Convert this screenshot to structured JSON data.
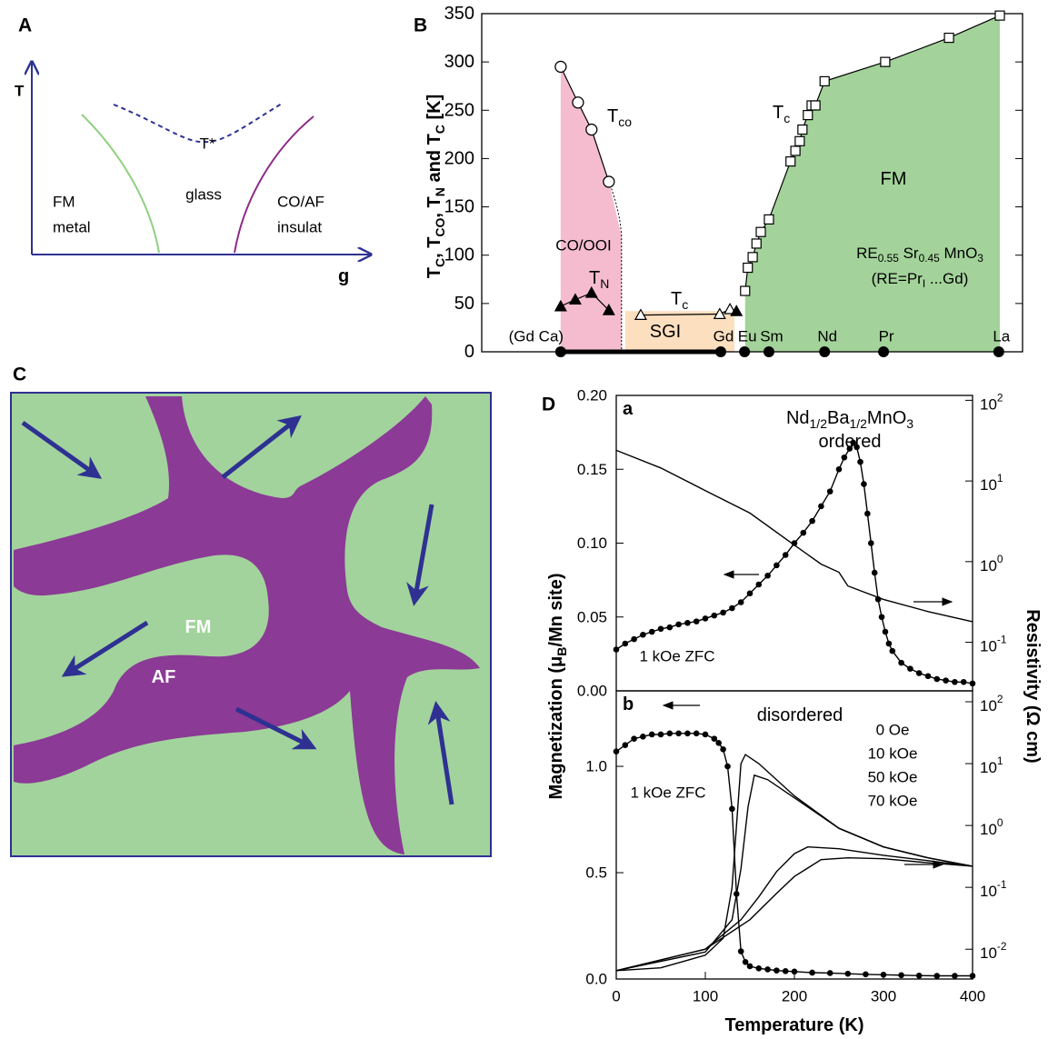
{
  "panel_labels": [
    "A",
    "B",
    "C",
    "D"
  ],
  "diagram_a": {
    "y_axis": "T",
    "x_axis": "g",
    "t_star": "T*",
    "left_phase": [
      "FM",
      "metal"
    ],
    "middle_phase": "glass",
    "right_phase": [
      "CO/AF",
      "insulat"
    ]
  },
  "diagram_c": {
    "fm": "FM",
    "af": "AF"
  },
  "chart_data": [
    {
      "type": "scatter",
      "ylabel": [
        "T",
        "C",
        ", T",
        "CO",
        ", T",
        "N",
        " and T",
        "C",
        " [K]"
      ],
      "xlim": [
        0,
        100
      ],
      "ylim": [
        0,
        350
      ],
      "yticks": [
        0,
        50,
        100,
        150,
        200,
        250,
        300,
        350
      ],
      "series": [
        {
          "label": [
            "T",
            "co"
          ],
          "marker": "circle-open",
          "line": true,
          "fill": "#f5bcd0",
          "x": [
            14.6,
            17.8,
            20.3,
            23.5
          ],
          "values": [
            295,
            258,
            230,
            176
          ]
        },
        {
          "label": [
            "T",
            "N"
          ],
          "marker": "triangle-filled",
          "line": true,
          "x": [
            14.6,
            17.3,
            20.3,
            23.5
          ],
          "values": [
            47,
            54,
            61,
            43
          ]
        },
        {
          "label": [
            "T",
            "c"
          ],
          "marker": "triangle-open",
          "line": true,
          "fill": "#fbdfbf",
          "x": [
            29.4,
            44.0,
            45.9
          ],
          "values": [
            38,
            39,
            44
          ]
        },
        {
          "marker": "triangle-filled",
          "x": [
            47.1
          ],
          "values": [
            42
          ]
        },
        {
          "label": [
            "T",
            "c"
          ],
          "marker": "square-open",
          "line": true,
          "fill": "#a3d39a",
          "x": [
            48.7,
            49.2,
            50.1,
            50.8,
            51.6,
            53.1,
            57.1,
            58.0,
            58.8,
            59.3,
            60.3,
            61.0,
            61.7,
            63.4,
            74.6,
            86.4,
            95.8
          ],
          "values": [
            63,
            87,
            98,
            112,
            124,
            137,
            197,
            208,
            218,
            230,
            245,
            255,
            255,
            280,
            300,
            325,
            348
          ]
        },
        {
          "marker": "dot",
          "x": [
            14.6,
            44.2,
            48.6,
            53.1,
            63.4,
            74.3,
            95.6
          ],
          "values": [
            0,
            0,
            0,
            0,
            0,
            0,
            0
          ],
          "point_labels": [
            "(Gd Ca)",
            "Gd",
            "Eu",
            "Sm",
            "Nd",
            "Pr",
            "La"
          ]
        }
      ],
      "annotations": {
        "fm": "FM",
        "cooi": "CO/OOI",
        "sgi": "SGI",
        "formula": [
          "RE",
          "0.55",
          " Sr",
          "0.45",
          " MnO",
          "3"
        ],
        "re": [
          "(RE=Pr",
          "I",
          " ...Gd)"
        ]
      }
    },
    {
      "type": "line",
      "panel_label": "a",
      "title": [
        "Nd",
        "1/2",
        "Ba",
        "1/2",
        "MnO",
        "3"
      ],
      "subtitle": "ordered",
      "annotation": "1 kOe ZFC",
      "ylabel": [
        "Magnetization (μ",
        "B",
        "/Mn site)"
      ],
      "y2label": "Resistivity (Ω cm)",
      "xlim": [
        0,
        400
      ],
      "ylim": [
        0,
        0.2
      ],
      "yticks": [
        {
          "value": 0,
          "label": "0.00"
        },
        {
          "value": 0.05,
          "label": "0.05"
        },
        {
          "value": 0.1,
          "label": "0.10"
        },
        {
          "value": 0.15,
          "label": "0.15"
        },
        {
          "value": 0.2,
          "label": "0.20"
        }
      ],
      "y2lim": [
        0.025,
        115
      ],
      "y2log": true,
      "y2ticks": [
        {
          "value": 100,
          "label": [
            "10",
            "2"
          ]
        },
        {
          "value": 10,
          "label": [
            "10",
            "1"
          ]
        },
        {
          "value": 1,
          "label": [
            "10",
            "0"
          ]
        },
        {
          "value": 0.1,
          "label": [
            "10",
            "-1"
          ]
        }
      ],
      "series": [
        {
          "marker": "dot",
          "x": [
            0,
            10,
            20,
            30,
            40,
            50,
            60,
            70,
            80,
            90,
            100,
            110,
            120,
            130,
            140,
            150,
            160,
            170,
            180,
            190,
            200,
            210,
            220,
            230,
            240,
            250,
            256,
            262,
            266,
            270,
            274,
            278,
            282,
            286,
            290,
            294,
            298,
            302,
            306,
            310,
            320,
            330,
            340,
            350,
            360,
            370,
            380,
            390,
            400
          ],
          "values": [
            0.028,
            0.032,
            0.035,
            0.038,
            0.04,
            0.042,
            0.043,
            0.045,
            0.046,
            0.047,
            0.049,
            0.051,
            0.053,
            0.056,
            0.06,
            0.066,
            0.072,
            0.078,
            0.085,
            0.092,
            0.1,
            0.107,
            0.115,
            0.125,
            0.135,
            0.15,
            0.158,
            0.164,
            0.168,
            0.165,
            0.155,
            0.14,
            0.12,
            0.1,
            0.08,
            0.062,
            0.05,
            0.04,
            0.032,
            0.027,
            0.019,
            0.015,
            0.012,
            0.01,
            0.008,
            0.007,
            0.006,
            0.006,
            0.005
          ]
        },
        {
          "axis": "y2",
          "x": [
            0,
            50,
            100,
            150,
            200,
            230,
            250,
            260,
            300,
            350,
            400
          ],
          "values": [
            24,
            14.5,
            7.6,
            4,
            1.6,
            0.93,
            0.74,
            0.5,
            0.34,
            0.24,
            0.18
          ]
        }
      ]
    },
    {
      "type": "line",
      "panel_label": "b",
      "subtitle": "disordered",
      "annotation": "1 kOe ZFC",
      "xlabel": "Temperature (K)",
      "xlim": [
        0,
        400
      ],
      "xticks": [
        0,
        100,
        200,
        300,
        400
      ],
      "ylim": [
        0,
        1.355
      ],
      "yticks": [
        {
          "value": 0,
          "label": "0.0"
        },
        {
          "value": 0.5,
          "label": "0.5"
        },
        {
          "value": 1,
          "label": "1.0"
        }
      ],
      "y2lim": [
        0.0033,
        150
      ],
      "y2log": true,
      "y2ticks": [
        {
          "value": 100,
          "label": [
            "10",
            "2"
          ]
        },
        {
          "value": 10,
          "label": [
            "10",
            "1"
          ]
        },
        {
          "value": 1,
          "label": [
            "10",
            "0"
          ]
        },
        {
          "value": 0.1,
          "label": [
            "10",
            "-1"
          ]
        },
        {
          "value": 0.01,
          "label": [
            "10",
            "-2"
          ]
        }
      ],
      "series": [
        {
          "marker": "dot",
          "x": [
            0,
            10,
            20,
            30,
            40,
            50,
            60,
            70,
            80,
            90,
            100,
            110,
            115,
            120,
            125,
            130,
            135,
            140,
            145,
            150,
            160,
            170,
            180,
            190,
            200,
            220,
            240,
            260,
            280,
            300,
            320,
            340,
            360,
            380,
            400
          ],
          "values": [
            1.07,
            1.1,
            1.13,
            1.14,
            1.15,
            1.15,
            1.155,
            1.155,
            1.155,
            1.155,
            1.15,
            1.13,
            1.11,
            1.08,
            1.0,
            0.8,
            0.4,
            0.13,
            0.08,
            0.06,
            0.05,
            0.045,
            0.04,
            0.037,
            0.035,
            0.03,
            0.028,
            0.025,
            0.022,
            0.02,
            0.018,
            0.016,
            0.015,
            0.015,
            0.015
          ]
        },
        {
          "name": "0 Oe",
          "axis": "y2",
          "x": [
            0,
            50,
            100,
            120,
            130,
            135,
            140,
            145,
            160,
            200,
            250,
            300,
            350,
            400
          ],
          "values": [
            0.0045,
            0.005,
            0.008,
            0.015,
            0.1,
            1,
            10,
            14,
            10,
            3,
            0.9,
            0.45,
            0.3,
            0.22
          ]
        },
        {
          "name": "10 kOe",
          "axis": "y2",
          "x": [
            0,
            100,
            130,
            140,
            148,
            155,
            170,
            200,
            250,
            300,
            350,
            400
          ],
          "values": [
            0.0045,
            0.009,
            0.03,
            0.2,
            2,
            6.5,
            5.5,
            2.8,
            0.9,
            0.45,
            0.3,
            0.22
          ]
        },
        {
          "name": "50 kOe",
          "axis": "y2",
          "x": [
            0,
            100,
            140,
            160,
            180,
            200,
            215,
            250,
            300,
            350,
            400
          ],
          "values": [
            0.0045,
            0.01,
            0.03,
            0.07,
            0.18,
            0.35,
            0.45,
            0.42,
            0.33,
            0.27,
            0.22
          ]
        },
        {
          "name": "70 kOe",
          "axis": "y2",
          "x": [
            0,
            100,
            150,
            180,
            200,
            230,
            260,
            300,
            350,
            400
          ],
          "values": [
            0.0045,
            0.01,
            0.03,
            0.08,
            0.15,
            0.28,
            0.3,
            0.29,
            0.25,
            0.22
          ]
        }
      ]
    }
  ]
}
